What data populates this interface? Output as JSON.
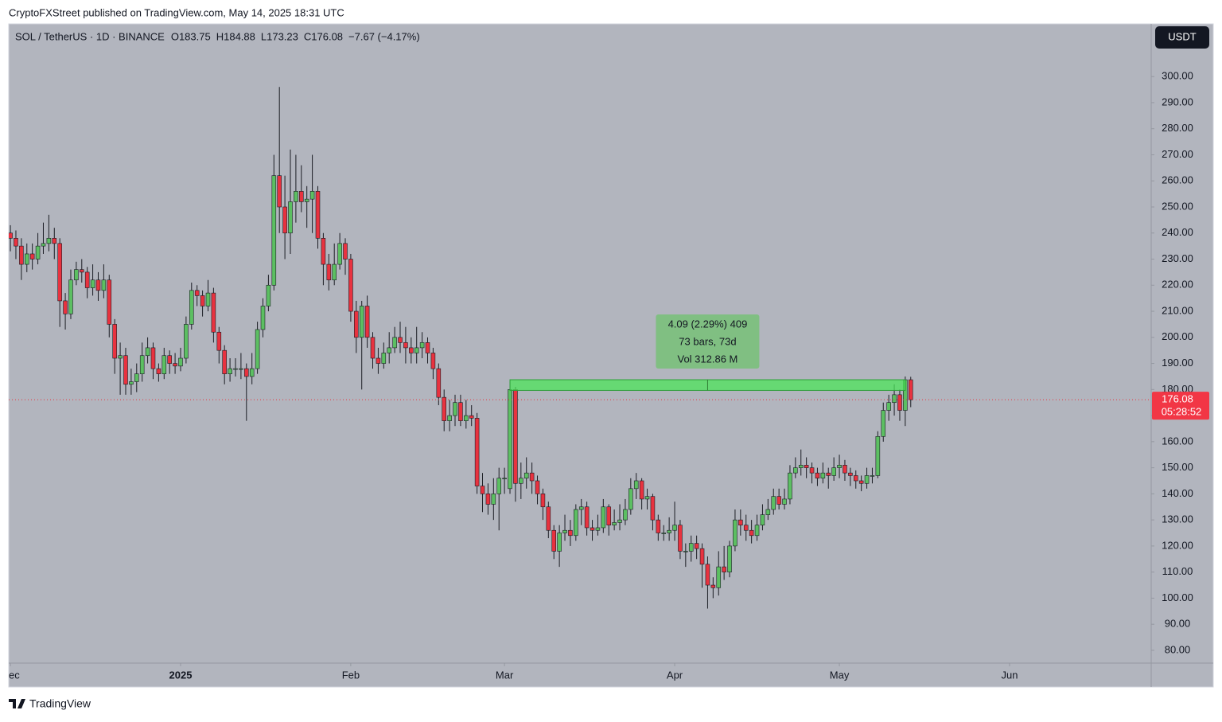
{
  "header": "CryptoFXStreet published on TradingView.com, May 14, 2025 18:31 UTC",
  "footer_logo": "TradingView",
  "chart_data": {
    "type": "candlestick",
    "title": "SOL / TetherUS · 1D · BINANCE",
    "legend_values": [
      "O183.75",
      "H184.88",
      "L173.23",
      "C176.08",
      "−7.67 (−4.17%)"
    ],
    "currency": "USDT",
    "up_color": "#5cbf62",
    "down_color": "#e8323f",
    "xlim": [
      -0.3,
      207.8
    ],
    "ylim": [
      75.1,
      320.2
    ],
    "xticks": [
      {
        "value": 0,
        "label": "ec"
      },
      {
        "value": 31,
        "label": "2025"
      },
      {
        "value": 62,
        "label": "Feb"
      },
      {
        "value": 90,
        "label": "Mar"
      },
      {
        "value": 121,
        "label": "Apr"
      },
      {
        "value": 151,
        "label": "May"
      },
      {
        "value": 182,
        "label": "Jun"
      }
    ],
    "yticks": [
      {
        "value": 80,
        "label": "80.00"
      },
      {
        "value": 90,
        "label": "90.00"
      },
      {
        "value": 100,
        "label": "100.00"
      },
      {
        "value": 110,
        "label": "110.00"
      },
      {
        "value": 120,
        "label": "120.00"
      },
      {
        "value": 130,
        "label": "130.00"
      },
      {
        "value": 140,
        "label": "140.00"
      },
      {
        "value": 150,
        "label": "150.00"
      },
      {
        "value": 160,
        "label": "160.00"
      },
      {
        "value": 170,
        "label": "170.00"
      },
      {
        "value": 180,
        "label": "180.00"
      },
      {
        "value": 190,
        "label": "190.00"
      },
      {
        "value": 200,
        "label": "200.00"
      },
      {
        "value": 210,
        "label": "210.00"
      },
      {
        "value": 220,
        "label": "220.00"
      },
      {
        "value": 230,
        "label": "230.00"
      },
      {
        "value": 240,
        "label": "240.00"
      },
      {
        "value": 250,
        "label": "250.00"
      },
      {
        "value": 260,
        "label": "260.00"
      },
      {
        "value": 270,
        "label": "270.00"
      },
      {
        "value": 280,
        "label": "280.00"
      },
      {
        "value": 290,
        "label": "290.00"
      },
      {
        "value": 300,
        "label": "300.00"
      }
    ],
    "last_price": {
      "value": 176.08,
      "label": "176.08"
    },
    "countdown": "05:28:52",
    "measure": {
      "low": 179.66,
      "high": 183.75,
      "start": 91,
      "end": 163,
      "lines": [
        "4.09 (2.29%) 409",
        "73 bars, 73d",
        "Vol 312.86 M"
      ]
    },
    "open": [
      240,
      238,
      235,
      228,
      232,
      230,
      235,
      236,
      238,
      236,
      214,
      209,
      222,
      226,
      225,
      219,
      222,
      218,
      222,
      205,
      192,
      193,
      182,
      183,
      186,
      193,
      196,
      188,
      186,
      193,
      190,
      189,
      192,
      205,
      218,
      216,
      212,
      217,
      202,
      195,
      186,
      188,
      188,
      188,
      185,
      188,
      203,
      212,
      220,
      262,
      250,
      240,
      252,
      256,
      252,
      253,
      256,
      238,
      228,
      222,
      228,
      236,
      230,
      210,
      200,
      212,
      200,
      192,
      190,
      194,
      196,
      200,
      198,
      196,
      194,
      196,
      198,
      194,
      188,
      177,
      168,
      170,
      175,
      168,
      170,
      169,
      143,
      140,
      136,
      140,
      146,
      142,
      180,
      144,
      146,
      148,
      145,
      140,
      135,
      126,
      118,
      125,
      126,
      124,
      134,
      135,
      127,
      126,
      127,
      135,
      128,
      129,
      130,
      134,
      142,
      145,
      138,
      139,
      130,
      125,
      125,
      126,
      128,
      118,
      118,
      121,
      119,
      113,
      105,
      104,
      112,
      110,
      120,
      130,
      128,
      126,
      124,
      128,
      132,
      134,
      139,
      136,
      138,
      148,
      150,
      151,
      150,
      148,
      146,
      148,
      147,
      150,
      151,
      148,
      147,
      145,
      144,
      147,
      147,
      162,
      172,
      175,
      178,
      172,
      183.75
    ],
    "high": [
      243,
      241,
      238,
      236,
      236,
      240,
      244,
      247,
      242,
      238,
      217,
      226,
      229,
      230,
      227,
      228,
      225,
      228,
      224,
      207,
      198,
      196,
      188,
      190,
      198,
      200,
      198,
      190,
      196,
      195,
      194,
      196,
      208,
      221,
      220,
      218,
      222,
      219,
      204,
      197,
      192,
      192,
      194,
      190,
      194,
      206,
      215,
      224,
      270,
      296,
      262,
      272,
      270,
      266,
      258,
      270,
      258,
      240,
      232,
      236,
      240,
      238,
      232,
      214,
      214,
      216,
      202,
      196,
      198,
      202,
      204,
      206,
      204,
      200,
      204,
      202,
      200,
      196,
      190,
      180,
      176,
      178,
      178,
      176,
      174,
      171,
      148,
      144,
      146,
      150,
      150,
      183,
      181,
      152,
      154,
      152,
      147,
      142,
      137,
      128,
      128,
      132,
      130,
      136,
      138,
      137,
      130,
      132,
      138,
      136,
      134,
      136,
      138,
      146,
      148,
      146,
      142,
      140,
      132,
      128,
      131,
      137,
      130,
      121,
      124,
      124,
      121,
      116,
      108,
      118,
      120,
      122,
      134,
      134,
      132,
      130,
      132,
      136,
      138,
      142,
      142,
      142,
      151,
      154,
      157,
      154,
      152,
      150,
      152,
      150,
      154,
      155,
      153,
      150,
      149,
      147,
      150,
      150,
      164,
      175,
      178,
      182,
      180,
      185,
      184.88
    ],
    "low": [
      233,
      230,
      222,
      225,
      226,
      228,
      232,
      233,
      230,
      204,
      203,
      207,
      220,
      221,
      215,
      216,
      214,
      215,
      200,
      186,
      178,
      178,
      178,
      179,
      183,
      190,
      184,
      183,
      184,
      186,
      186,
      187,
      190,
      203,
      212,
      208,
      210,
      198,
      190,
      182,
      183,
      185,
      184,
      168,
      182,
      186,
      200,
      210,
      218,
      240,
      230,
      232,
      244,
      248,
      242,
      240,
      234,
      220,
      218,
      220,
      226,
      224,
      206,
      194,
      180,
      196,
      188,
      186,
      188,
      190,
      194,
      194,
      190,
      190,
      190,
      192,
      190,
      184,
      174,
      164,
      164,
      166,
      166,
      165,
      166,
      140,
      133,
      132,
      130,
      126,
      140,
      140,
      137,
      138,
      142,
      140,
      136,
      130,
      123,
      115,
      112,
      122,
      120,
      122,
      128,
      124,
      122,
      124,
      125,
      124,
      126,
      126,
      128,
      132,
      138,
      134,
      134,
      126,
      122,
      122,
      122,
      122,
      115,
      112,
      114,
      115,
      104,
      96,
      100,
      101,
      107,
      108,
      118,
      124,
      122,
      121,
      122,
      126,
      130,
      132,
      134,
      134,
      136,
      146,
      147,
      146,
      144,
      143,
      144,
      142,
      145,
      146,
      145,
      143,
      142,
      141,
      142,
      144,
      146,
      160,
      168,
      170,
      168,
      166,
      173.23
    ],
    "close": [
      238,
      235,
      228,
      232,
      230,
      235,
      236,
      238,
      236,
      214,
      209,
      222,
      226,
      225,
      219,
      222,
      218,
      222,
      205,
      192,
      193,
      182,
      183,
      186,
      193,
      196,
      188,
      186,
      193,
      190,
      189,
      192,
      205,
      218,
      216,
      212,
      217,
      202,
      195,
      186,
      188,
      188,
      188,
      185,
      188,
      203,
      212,
      220,
      262,
      250,
      240,
      252,
      256,
      252,
      253,
      256,
      238,
      228,
      222,
      228,
      236,
      230,
      210,
      200,
      212,
      200,
      192,
      190,
      194,
      196,
      200,
      198,
      196,
      194,
      196,
      198,
      194,
      188,
      177,
      168,
      170,
      175,
      168,
      170,
      169,
      143,
      140,
      136,
      140,
      146,
      146,
      180,
      144,
      146,
      148,
      145,
      140,
      135,
      126,
      118,
      125,
      126,
      124,
      134,
      135,
      127,
      126,
      127,
      135,
      128,
      129,
      130,
      134,
      142,
      145,
      138,
      139,
      130,
      125,
      125,
      126,
      128,
      118,
      118,
      121,
      119,
      113,
      105,
      104,
      112,
      110,
      120,
      130,
      128,
      126,
      124,
      128,
      132,
      134,
      139,
      136,
      138,
      148,
      150,
      151,
      150,
      148,
      146,
      148,
      147,
      150,
      151,
      148,
      147,
      145,
      144,
      147,
      147,
      162,
      172,
      175,
      178,
      172,
      183.75,
      176.08
    ]
  }
}
